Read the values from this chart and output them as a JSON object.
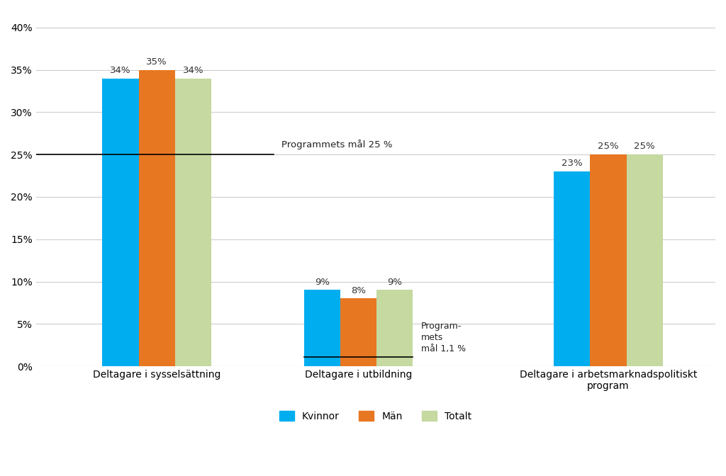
{
  "groups": [
    "Deltagare i sysselsättning",
    "Deltagare i utbildning",
    "Deltagare i arbetsmarknadspolitiskt\nprogram"
  ],
  "series": {
    "Kvinnor": [
      0.34,
      0.09,
      0.23
    ],
    "Män": [
      0.35,
      0.08,
      0.25
    ],
    "Totalt": [
      0.34,
      0.09,
      0.25
    ]
  },
  "colors": {
    "Kvinnor": "#00AEEF",
    "Män": "#E87722",
    "Totalt": "#C5D9A0"
  },
  "bar_labels": {
    "Kvinnor": [
      "34%",
      "9%",
      "23%"
    ],
    "Män": [
      "35%",
      "8%",
      "25%"
    ],
    "Totalt": [
      "34%",
      "9%",
      "25%"
    ]
  },
  "ylim": [
    0,
    0.42
  ],
  "yticks": [
    0.0,
    0.05,
    0.1,
    0.15,
    0.2,
    0.25,
    0.3,
    0.35,
    0.4
  ],
  "ytick_labels": [
    "0%",
    "5%",
    "10%",
    "15%",
    "20%",
    "25%",
    "30%",
    "35%",
    "40%"
  ],
  "background_color": "#FFFFFF",
  "bar_width": 0.18,
  "label_fontsize": 9.5,
  "tick_fontsize": 10,
  "legend_fontsize": 10
}
